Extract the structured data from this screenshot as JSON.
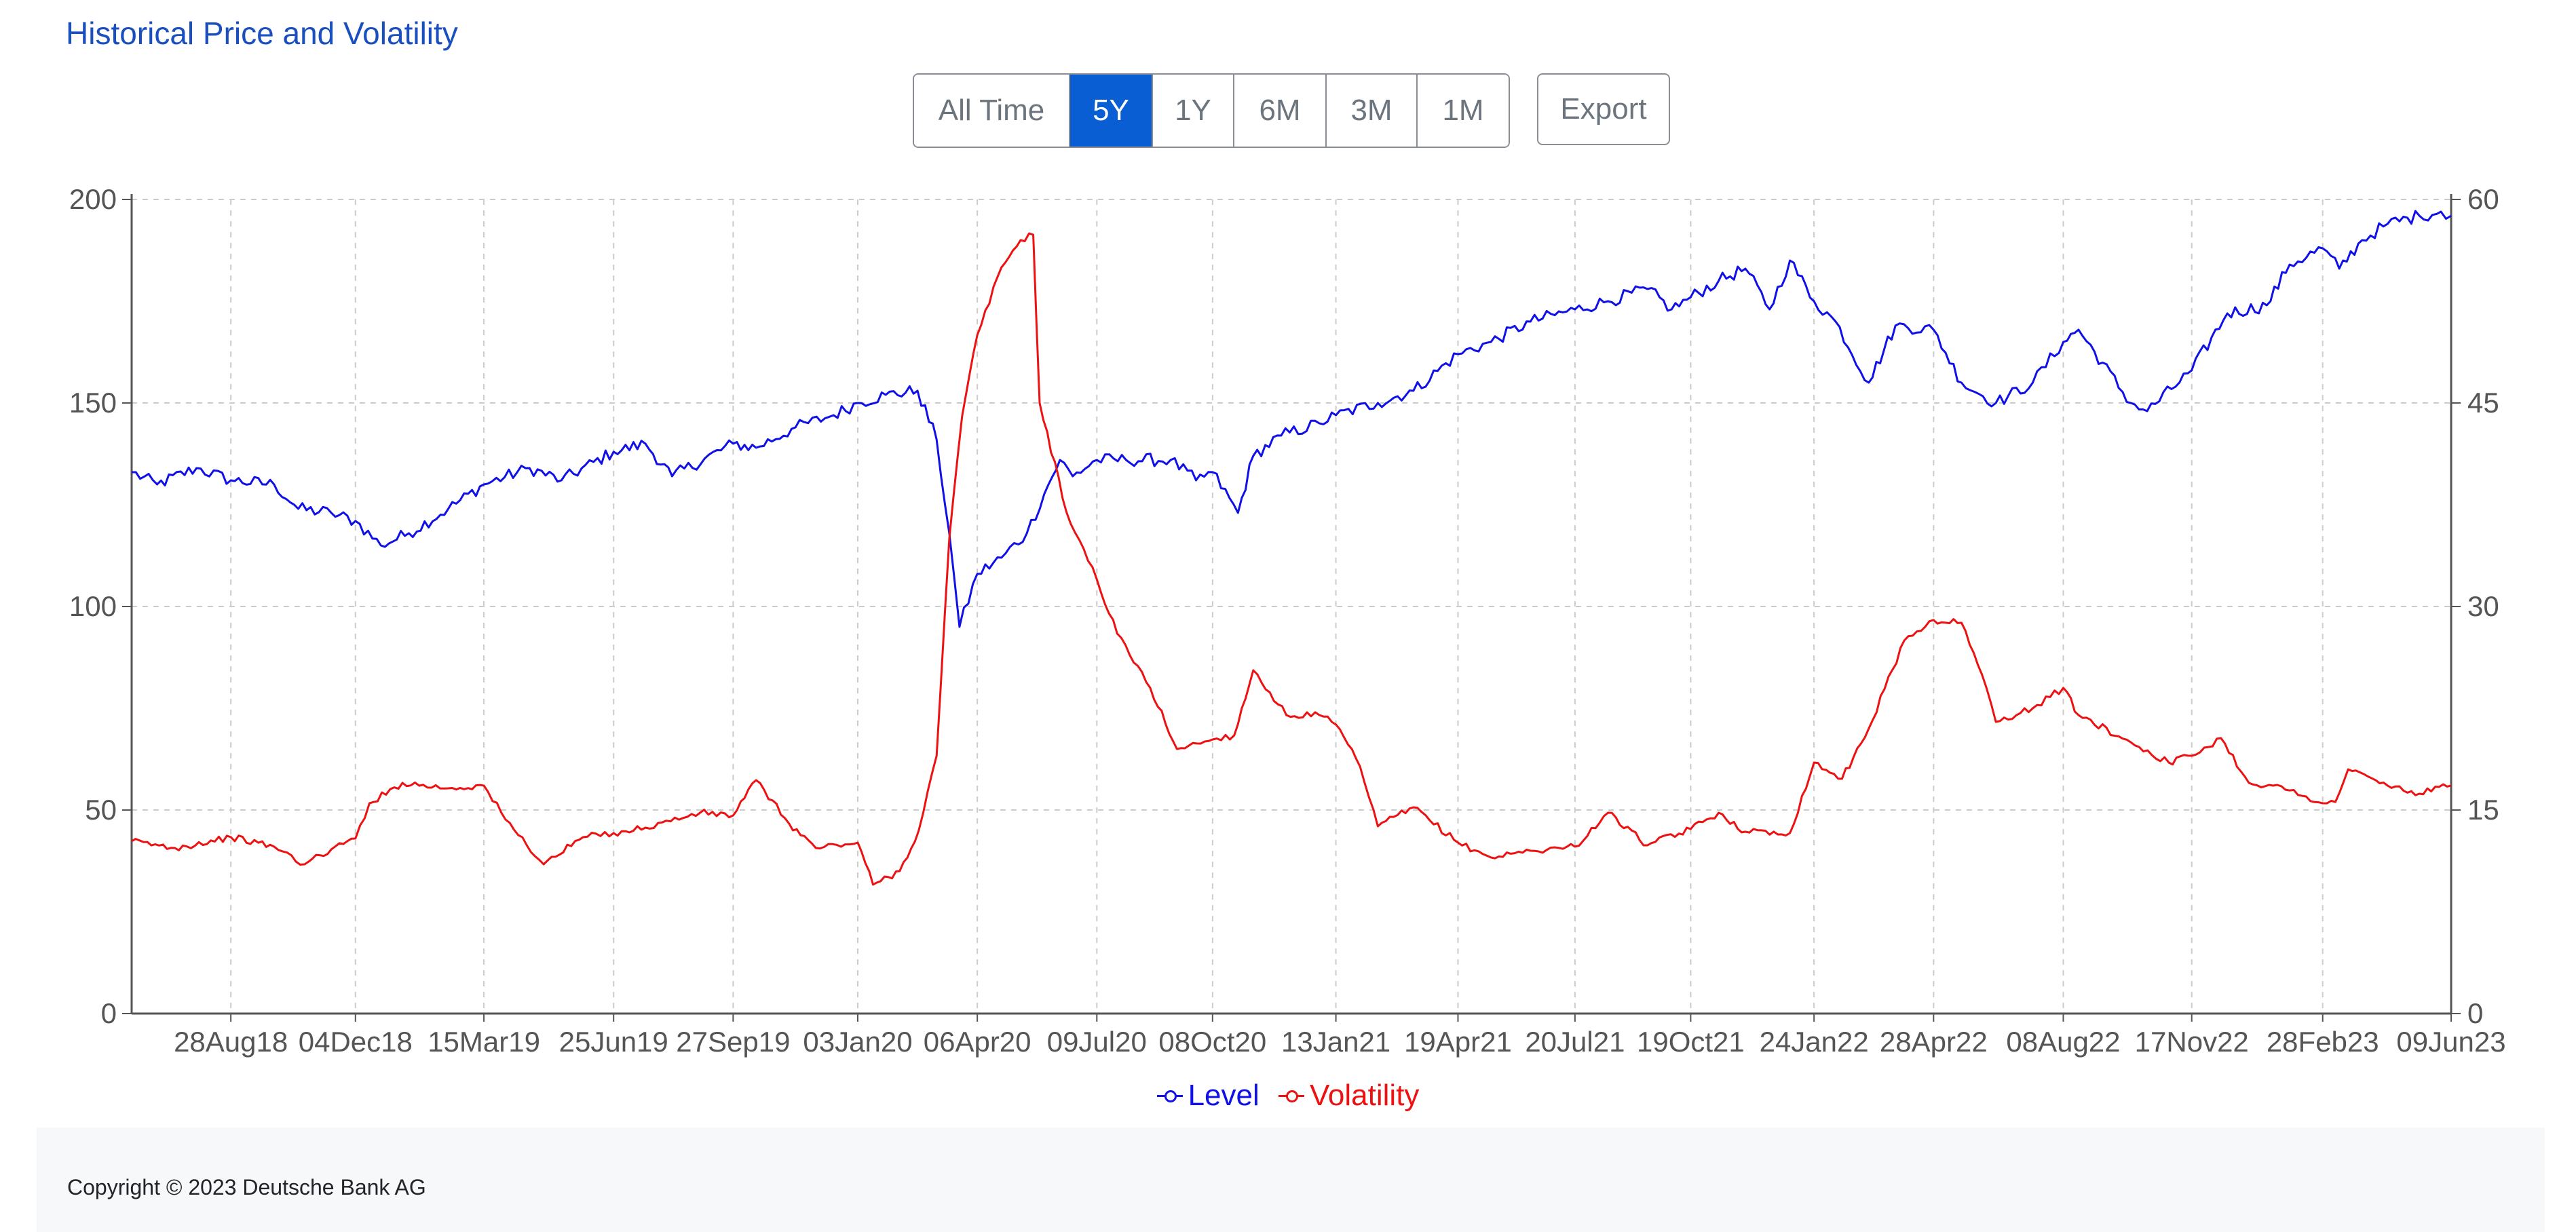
{
  "page": {
    "title": "Historical Price and Volatility"
  },
  "range_buttons": [
    {
      "label": "All Time",
      "active": false
    },
    {
      "label": "5Y",
      "active": true
    },
    {
      "label": "1Y",
      "active": false
    },
    {
      "label": "6M",
      "active": false
    },
    {
      "label": "3M",
      "active": false
    },
    {
      "label": "1M",
      "active": false
    }
  ],
  "export_label": "Export",
  "footer": {
    "copyright": "Copyright © 2023 Deutsche Bank AG"
  },
  "colors": {
    "level": "#1010e8",
    "volatility": "#ee1111",
    "grid": "#cccccc",
    "axis": "#555555",
    "active_button": "#0a5ed4"
  },
  "chart_data": {
    "type": "line",
    "title": "",
    "xlabel": "",
    "ylabel": "",
    "grid": true,
    "legend_position": "bottom-center",
    "x_ticks": [
      "28Aug18",
      "04Dec18",
      "15Mar19",
      "25Jun19",
      "27Sep19",
      "03Jan20",
      "06Apr20",
      "09Jul20",
      "08Oct20",
      "13Jan21",
      "19Apr21",
      "20Jul21",
      "19Oct21",
      "24Jan22",
      "28Apr22",
      "08Aug22",
      "17Nov22",
      "28Feb23",
      "09Jun23"
    ],
    "y_left": {
      "ticks": [
        0,
        50,
        100,
        150,
        200
      ],
      "range": [
        0,
        200
      ]
    },
    "y_right": {
      "ticks": [
        0,
        15,
        30,
        45,
        60
      ],
      "range": [
        0,
        60
      ]
    },
    "x_range": [
      "2018-06-11",
      "2023-06-09"
    ],
    "series": [
      {
        "name": "Level",
        "axis": "left",
        "points": [
          [
            "2018-06-11",
            133
          ],
          [
            "2018-07-01",
            130
          ],
          [
            "2018-08-01",
            134
          ],
          [
            "2018-08-28",
            131
          ],
          [
            "2018-10-01",
            130
          ],
          [
            "2018-10-20",
            124
          ],
          [
            "2018-11-15",
            123
          ],
          [
            "2018-12-04",
            121
          ],
          [
            "2018-12-24",
            115
          ],
          [
            "2019-01-15",
            118
          ],
          [
            "2019-02-15",
            124
          ],
          [
            "2019-03-15",
            130
          ],
          [
            "2019-04-20",
            134
          ],
          [
            "2019-05-15",
            131
          ],
          [
            "2019-06-25",
            138
          ],
          [
            "2019-07-20",
            140
          ],
          [
            "2019-08-10",
            132
          ],
          [
            "2019-09-27",
            140
          ],
          [
            "2019-10-15",
            139
          ],
          [
            "2019-11-15",
            144
          ],
          [
            "2019-12-15",
            147
          ],
          [
            "2020-01-03",
            150
          ],
          [
            "2020-01-25",
            152
          ],
          [
            "2020-02-19",
            153
          ],
          [
            "2020-03-05",
            141
          ],
          [
            "2020-03-15",
            118
          ],
          [
            "2020-03-23",
            95
          ],
          [
            "2020-04-06",
            108
          ],
          [
            "2020-04-25",
            112
          ],
          [
            "2020-05-15",
            118
          ],
          [
            "2020-06-01",
            130
          ],
          [
            "2020-06-10",
            136
          ],
          [
            "2020-06-20",
            132
          ],
          [
            "2020-07-09",
            136
          ],
          [
            "2020-08-01",
            136
          ],
          [
            "2020-09-05",
            136
          ],
          [
            "2020-09-25",
            131
          ],
          [
            "2020-10-08",
            133
          ],
          [
            "2020-10-28",
            123
          ],
          [
            "2020-11-09",
            137
          ],
          [
            "2020-12-01",
            142
          ],
          [
            "2020-12-31",
            145
          ],
          [
            "2021-01-13",
            147
          ],
          [
            "2021-02-15",
            150
          ],
          [
            "2021-03-15",
            153
          ],
          [
            "2021-04-19",
            162
          ],
          [
            "2021-05-15",
            165
          ],
          [
            "2021-06-15",
            170
          ],
          [
            "2021-07-20",
            173
          ],
          [
            "2021-08-15",
            175
          ],
          [
            "2021-09-15",
            178
          ],
          [
            "2021-10-04",
            173
          ],
          [
            "2021-10-19",
            176
          ],
          [
            "2021-11-10",
            180
          ],
          [
            "2021-12-01",
            183
          ],
          [
            "2021-12-20",
            173
          ],
          [
            "2022-01-05",
            185
          ],
          [
            "2022-01-24",
            175
          ],
          [
            "2022-02-10",
            170
          ],
          [
            "2022-03-08",
            155
          ],
          [
            "2022-03-29",
            169
          ],
          [
            "2022-04-28",
            168
          ],
          [
            "2022-05-20",
            155
          ],
          [
            "2022-06-16",
            150
          ],
          [
            "2022-07-15",
            155
          ],
          [
            "2022-08-08",
            165
          ],
          [
            "2022-08-20",
            168
          ],
          [
            "2022-09-30",
            150
          ],
          [
            "2022-10-13",
            148
          ],
          [
            "2022-11-17",
            158
          ],
          [
            "2022-12-15",
            172
          ],
          [
            "2023-01-15",
            174
          ],
          [
            "2023-02-02",
            184
          ],
          [
            "2023-02-28",
            188
          ],
          [
            "2023-03-13",
            183
          ],
          [
            "2023-03-31",
            190
          ],
          [
            "2023-04-20",
            194
          ],
          [
            "2023-05-15",
            196
          ],
          [
            "2023-06-01",
            197
          ],
          [
            "2023-06-09",
            196
          ]
        ]
      },
      {
        "name": "Volatility",
        "axis": "right",
        "points": [
          [
            "2018-06-11",
            12.7
          ],
          [
            "2018-07-15",
            12.2
          ],
          [
            "2018-08-28",
            13.0
          ],
          [
            "2018-10-01",
            12.3
          ],
          [
            "2018-10-25",
            11.0
          ],
          [
            "2018-11-15",
            12.1
          ],
          [
            "2018-12-04",
            12.9
          ],
          [
            "2018-12-15",
            15.5
          ],
          [
            "2019-01-10",
            17.0
          ],
          [
            "2019-02-15",
            16.6
          ],
          [
            "2019-03-15",
            16.8
          ],
          [
            "2019-04-01",
            14.3
          ],
          [
            "2019-05-01",
            11.0
          ],
          [
            "2019-06-01",
            13.0
          ],
          [
            "2019-06-25",
            13.3
          ],
          [
            "2019-07-20",
            13.7
          ],
          [
            "2019-09-01",
            14.8
          ],
          [
            "2019-09-27",
            14.6
          ],
          [
            "2019-10-15",
            17.2
          ],
          [
            "2019-11-10",
            14.0
          ],
          [
            "2019-12-01",
            12.2
          ],
          [
            "2020-01-03",
            12.6
          ],
          [
            "2020-01-15",
            9.5
          ],
          [
            "2020-02-05",
            10.5
          ],
          [
            "2020-02-20",
            13.5
          ],
          [
            "2020-03-05",
            19.0
          ],
          [
            "2020-03-15",
            35.0
          ],
          [
            "2020-03-25",
            44.0
          ],
          [
            "2020-04-06",
            50.0
          ],
          [
            "2020-04-25",
            55.0
          ],
          [
            "2020-05-10",
            57.0
          ],
          [
            "2020-05-20",
            57.4
          ],
          [
            "2020-05-25",
            45.0
          ],
          [
            "2020-06-15",
            37.0
          ],
          [
            "2020-07-09",
            32.0
          ],
          [
            "2020-07-25",
            28.0
          ],
          [
            "2020-08-20",
            24.0
          ],
          [
            "2020-09-10",
            19.5
          ],
          [
            "2020-10-08",
            20.2
          ],
          [
            "2020-10-25",
            20.5
          ],
          [
            "2020-11-09",
            25.3
          ],
          [
            "2020-12-05",
            22.0
          ],
          [
            "2020-12-31",
            22.0
          ],
          [
            "2021-01-13",
            21.3
          ],
          [
            "2021-02-01",
            18.2
          ],
          [
            "2021-02-15",
            13.8
          ],
          [
            "2021-03-15",
            15.2
          ],
          [
            "2021-04-19",
            12.6
          ],
          [
            "2021-05-15",
            11.5
          ],
          [
            "2021-06-15",
            12.0
          ],
          [
            "2021-07-20",
            12.3
          ],
          [
            "2021-08-15",
            14.8
          ],
          [
            "2021-09-15",
            12.4
          ],
          [
            "2021-10-19",
            13.6
          ],
          [
            "2021-11-10",
            14.8
          ],
          [
            "2021-12-01",
            13.4
          ],
          [
            "2022-01-05",
            13.3
          ],
          [
            "2022-01-24",
            18.5
          ],
          [
            "2022-02-15",
            17.3
          ],
          [
            "2022-03-08",
            21.0
          ],
          [
            "2022-04-05",
            27.5
          ],
          [
            "2022-04-28",
            29.0
          ],
          [
            "2022-05-20",
            28.8
          ],
          [
            "2022-06-05",
            25.0
          ],
          [
            "2022-06-16",
            21.5
          ],
          [
            "2022-07-15",
            22.5
          ],
          [
            "2022-08-08",
            24.0
          ],
          [
            "2022-08-20",
            22.0
          ],
          [
            "2022-09-30",
            20.0
          ],
          [
            "2022-10-30",
            18.5
          ],
          [
            "2022-11-17",
            19.0
          ],
          [
            "2022-12-10",
            20.3
          ],
          [
            "2023-01-01",
            17.0
          ],
          [
            "2023-01-20",
            16.8
          ],
          [
            "2023-02-15",
            16.0
          ],
          [
            "2023-02-28",
            15.5
          ],
          [
            "2023-03-10",
            15.6
          ],
          [
            "2023-03-20",
            18.0
          ],
          [
            "2023-04-20",
            16.8
          ],
          [
            "2023-05-15",
            16.2
          ],
          [
            "2023-06-09",
            16.8
          ]
        ]
      }
    ]
  }
}
